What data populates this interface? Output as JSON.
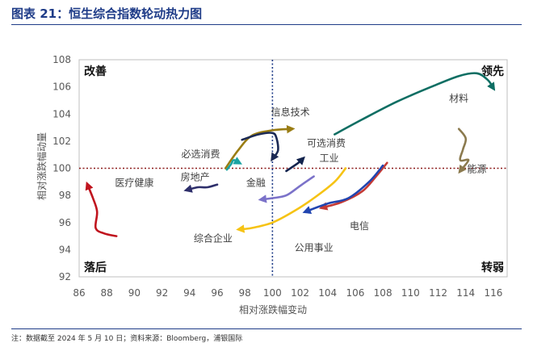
{
  "title": "图表 21：恒生综合指数轮动热力图",
  "footnote": "注：数据截至 2024 年 5 月 10 日；资料来源：Bloomberg，浦银国际",
  "chart_data": {
    "type": "line",
    "title": "",
    "xlabel": "相对涨跌幅变动",
    "ylabel": "相对涨跌幅动量",
    "xlim": [
      86,
      117
    ],
    "ylim": [
      92,
      108
    ],
    "xticks": [
      86,
      88,
      90,
      92,
      94,
      96,
      98,
      100,
      102,
      104,
      106,
      108,
      110,
      112,
      114,
      116
    ],
    "yticks": [
      92,
      94,
      96,
      98,
      100,
      102,
      104,
      106,
      108
    ],
    "reference_lines": {
      "x": 100,
      "y": 100
    },
    "quadrants": {
      "top_left": "改善",
      "top_right": "领先",
      "bottom_left": "落后",
      "bottom_right": "转弱"
    },
    "series": [
      {
        "name": "材料",
        "color": "#0e6e63",
        "x": [
          104.5,
          106.5,
          109,
          111.5,
          113.5,
          114.8,
          115.6,
          116.0
        ],
        "y": [
          102.5,
          103.6,
          104.9,
          106.0,
          106.8,
          107.0,
          106.5,
          105.9
        ]
      },
      {
        "name": "能源",
        "color": "#8b7a4e",
        "x": [
          113.5,
          114.0,
          113.8,
          113.6,
          114.2,
          113.6
        ],
        "y": [
          102.9,
          102.2,
          101.4,
          100.6,
          100.6,
          99.8
        ]
      },
      {
        "name": "信息技术",
        "color": "#9a7d14",
        "x": [
          96.6,
          97.5,
          98.5,
          100.0,
          101.4
        ],
        "y": [
          100.0,
          101.3,
          102.4,
          102.8,
          102.9
        ]
      },
      {
        "name": "可选消费",
        "color": "#1c2a55",
        "x": [
          97.8,
          99.0,
          100.0,
          100.3,
          100.4,
          100.0
        ],
        "y": [
          102.1,
          102.5,
          102.6,
          102.2,
          101.3,
          100.7
        ]
      },
      {
        "name": "必选消费",
        "color": "#1aa3a3",
        "x": [
          96.7,
          97.0,
          97.2,
          97.6
        ],
        "y": [
          99.9,
          100.3,
          100.6,
          100.4
        ]
      },
      {
        "name": "工业",
        "color": "#12234d",
        "x": [
          101.0,
          101.6,
          102.0,
          102.2
        ],
        "y": [
          99.8,
          100.2,
          100.5,
          100.7
        ]
      },
      {
        "name": "房地产",
        "color": "#2e2f6b",
        "x": [
          96.0,
          95.3,
          94.6,
          93.8
        ],
        "y": [
          98.8,
          98.6,
          98.6,
          98.4
        ]
      },
      {
        "name": "金融",
        "color": "#7b72c9",
        "x": [
          103.0,
          102.0,
          101.0,
          100.0,
          99.2
        ],
        "y": [
          99.4,
          98.7,
          98.0,
          97.8,
          97.7
        ]
      },
      {
        "name": "医疗健康",
        "color": "#c0141e",
        "x": [
          88.7,
          87.8,
          87.2,
          87.3,
          87.0,
          86.6
        ],
        "y": [
          95.0,
          95.2,
          95.6,
          96.8,
          97.8,
          98.8
        ]
      },
      {
        "name": "综合企业",
        "color": "#f6c314",
        "x": [
          105.3,
          104.5,
          103.0,
          101.5,
          100.0,
          98.5,
          97.6
        ],
        "y": [
          100.0,
          99.0,
          97.8,
          96.8,
          96.0,
          95.6,
          95.5
        ]
      },
      {
        "name": "电信",
        "color": "#c53a35",
        "x": [
          108.3,
          107.5,
          106.5,
          105.0,
          103.6
        ],
        "y": [
          100.4,
          99.4,
          98.3,
          97.5,
          97.1
        ]
      },
      {
        "name": "公用事业",
        "color": "#2145b0",
        "x": [
          108.0,
          107.0,
          105.5,
          104.0,
          102.4
        ],
        "y": [
          100.2,
          99.0,
          97.8,
          97.4,
          96.8
        ]
      }
    ],
    "labels": [
      {
        "text": "材料",
        "x": 113.5,
        "y": 104.9,
        "series": "材料"
      },
      {
        "text": "能源",
        "x": 114.8,
        "y": 99.7,
        "series": "能源"
      },
      {
        "text": "信息技术",
        "x": 101.3,
        "y": 103.9,
        "series": "信息技术"
      },
      {
        "text": "可选消费",
        "x": 103.9,
        "y": 101.6,
        "series": "可选消费"
      },
      {
        "text": "必选消费",
        "x": 94.8,
        "y": 100.8,
        "series": "必选消费"
      },
      {
        "text": "工业",
        "x": 104.1,
        "y": 100.5,
        "series": "工业"
      },
      {
        "text": "房地产",
        "x": 94.4,
        "y": 99.1,
        "series": "房地产"
      },
      {
        "text": "金融",
        "x": 98.8,
        "y": 98.7,
        "series": "金融"
      },
      {
        "text": "医疗健康",
        "x": 90.0,
        "y": 98.7,
        "series": "医疗健康"
      },
      {
        "text": "综合企业",
        "x": 95.7,
        "y": 94.6,
        "series": "综合企业"
      },
      {
        "text": "电信",
        "x": 106.3,
        "y": 95.5,
        "series": "电信"
      },
      {
        "text": "公用事业",
        "x": 103.0,
        "y": 93.9,
        "series": "公用事业"
      }
    ]
  }
}
